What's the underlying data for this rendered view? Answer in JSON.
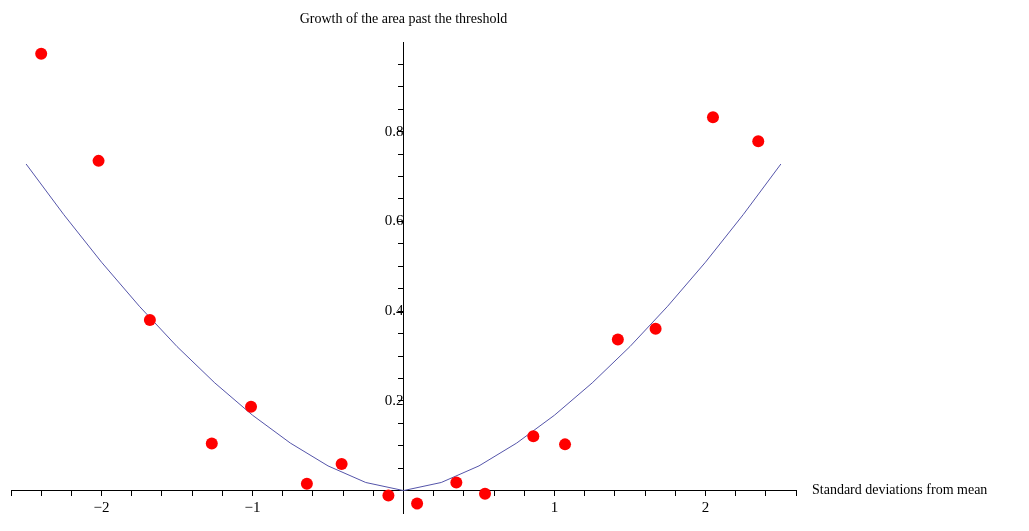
{
  "chart_data": {
    "type": "scatter",
    "xlabel": "Standard deviations from mean",
    "ylabel": "Growth of the area past the threshold",
    "xlim": [
      -2.6,
      2.6
    ],
    "ylim": [
      -0.05,
      1.0
    ],
    "xticks": [
      {
        "value": -2.6,
        "label": null
      },
      {
        "value": -2.4,
        "label": null
      },
      {
        "value": -2.2,
        "label": null
      },
      {
        "value": -2,
        "label": "−2"
      },
      {
        "value": -1.8,
        "label": null
      },
      {
        "value": -1.6,
        "label": null
      },
      {
        "value": -1.4,
        "label": null
      },
      {
        "value": -1.2,
        "label": null
      },
      {
        "value": -1,
        "label": "−1"
      },
      {
        "value": -0.8,
        "label": null
      },
      {
        "value": -0.6,
        "label": null
      },
      {
        "value": -0.4,
        "label": null
      },
      {
        "value": -0.2,
        "label": null
      },
      {
        "value": 0.2,
        "label": null
      },
      {
        "value": 0.4,
        "label": null
      },
      {
        "value": 0.6,
        "label": null
      },
      {
        "value": 0.8,
        "label": null
      },
      1,
      {
        "value": 1.2,
        "label": null
      },
      {
        "value": 1.4,
        "label": null
      },
      {
        "value": 1.6,
        "label": null
      },
      {
        "value": 1.8,
        "label": null
      },
      2,
      {
        "value": 2.2,
        "label": null
      },
      {
        "value": 2.4,
        "label": null
      },
      {
        "value": 2.6,
        "label": null
      }
    ],
    "yticks": [
      {
        "value": 0.05,
        "label": null
      },
      {
        "value": 0.1,
        "label": null
      },
      {
        "value": 0.15,
        "label": null
      },
      0.2,
      {
        "value": 0.25,
        "label": null
      },
      {
        "value": 0.3,
        "label": null
      },
      {
        "value": 0.35,
        "label": null
      },
      0.4,
      {
        "value": 0.45,
        "label": null
      },
      {
        "value": 0.5,
        "label": null
      },
      {
        "value": 0.55,
        "label": null
      },
      0.6,
      {
        "value": 0.65,
        "label": null
      },
      {
        "value": 0.7,
        "label": null
      },
      {
        "value": 0.75,
        "label": null
      },
      0.8,
      {
        "value": 0.85,
        "label": null
      },
      {
        "value": 0.9,
        "label": null
      },
      {
        "value": 0.95,
        "label": null
      }
    ],
    "grid": false,
    "legend": false,
    "marker": "circle",
    "series": [
      {
        "color": "#ff0000",
        "x": [
          -2.4,
          -2.02,
          -1.68,
          -1.27,
          -1.01,
          -0.64,
          -0.41,
          -0.1,
          0.09,
          0.35,
          0.54,
          0.86,
          1.07,
          1.42,
          1.67,
          2.05,
          2.35
        ],
        "values": [
          0.974,
          0.735,
          0.38,
          0.105,
          0.187,
          0.015,
          0.059,
          -0.011,
          -0.029,
          0.018,
          -0.007,
          0.121,
          0.103,
          0.337,
          0.361,
          0.832,
          0.779
        ]
      },
      {
        "type": "line",
        "marker": "none",
        "color": "#5555aa",
        "x": [
          -2.5,
          -2.25,
          -2,
          -1.75,
          -1.5,
          -1.25,
          -1,
          -0.75,
          -0.5,
          -0.25,
          0,
          0.25,
          0.5,
          0.75,
          1,
          1.25,
          1.5,
          1.75,
          2,
          2.25,
          2.5
        ],
        "values": [
          0.728,
          0.615,
          0.509,
          0.411,
          0.321,
          0.24,
          0.168,
          0.106,
          0.055,
          0.018,
          0,
          0.018,
          0.055,
          0.106,
          0.168,
          0.24,
          0.321,
          0.411,
          0.509,
          0.615,
          0.728
        ]
      }
    ]
  }
}
